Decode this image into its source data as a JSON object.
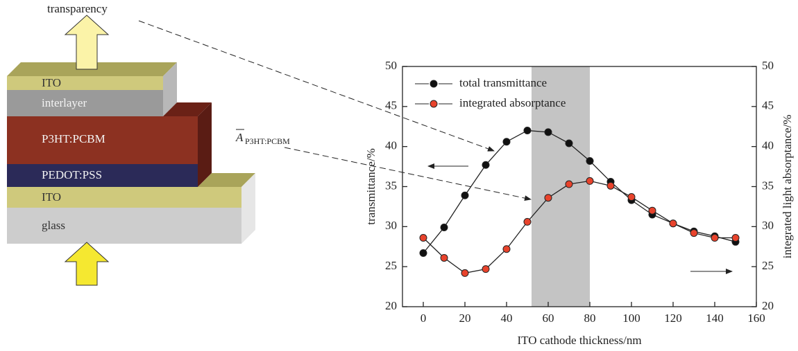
{
  "diagram": {
    "top_label": "transparency",
    "layers": [
      "ITO",
      "interlayer",
      "P3HT:PCBM",
      "PEDOT:PSS",
      "ITO",
      "glass"
    ],
    "annotation": {
      "symbol": "A",
      "subscript": "P3HT:PCBM"
    }
  },
  "chart_data": {
    "type": "line",
    "xlabel": "ITO cathode thickness/nm",
    "ylabel": "transmittance/%",
    "y2label": "integrated light absorptance/%",
    "x": [
      0,
      10,
      20,
      30,
      40,
      50,
      60,
      70,
      80,
      90,
      100,
      110,
      120,
      130,
      140,
      150
    ],
    "series": [
      {
        "name": "total transmittance",
        "color": "#111111",
        "values": [
          26.7,
          29.9,
          33.9,
          37.7,
          40.6,
          42.0,
          41.8,
          40.4,
          38.2,
          35.6,
          33.3,
          31.5,
          30.4,
          29.4,
          28.8,
          28.1
        ]
      },
      {
        "name": "integrated absorptance",
        "color": "#e8432c",
        "axis": "y2",
        "values": [
          28.6,
          26.1,
          24.2,
          24.7,
          27.2,
          30.6,
          33.6,
          35.3,
          35.7,
          35.1,
          33.7,
          32.0,
          30.4,
          29.2,
          28.6,
          28.6
        ]
      }
    ],
    "highlight_x": [
      52,
      80
    ],
    "xlim": [
      -10,
      160
    ],
    "xticks": [
      0,
      20,
      40,
      60,
      80,
      100,
      120,
      140,
      160
    ],
    "ylim": [
      20,
      50
    ],
    "yticks": [
      20,
      25,
      30,
      35,
      40,
      45,
      50
    ],
    "y2lim": [
      20,
      50
    ],
    "y2ticks": [
      20,
      25,
      30,
      35,
      40,
      45,
      50
    ]
  }
}
